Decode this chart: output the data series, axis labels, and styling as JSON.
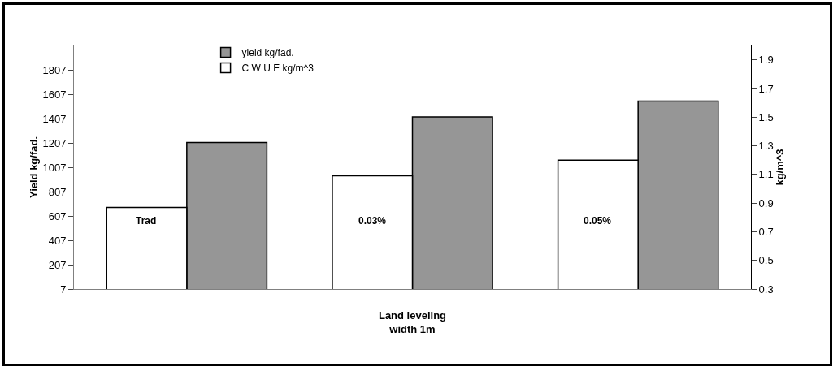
{
  "chart_data": {
    "type": "bar",
    "categories": [
      "Trad",
      "0.03%",
      "0.05%"
    ],
    "xlabel": "Land leveling\nwidth 1m",
    "ylabel": "Yield kg/fad.",
    "y2label": "kg/m^3",
    "series": [
      {
        "name": "C W U E kg/m^3",
        "color": "#ffffff",
        "axis": "y2",
        "values": [
          0.87,
          1.09,
          1.2
        ]
      },
      {
        "name": "yield kg/fad.",
        "color": "#969696",
        "values": [
          1210,
          1420,
          1550
        ]
      }
    ],
    "ylim": [
      7,
      2007
    ],
    "yticks": [
      7,
      207,
      407,
      607,
      807,
      1007,
      1207,
      1407,
      1607,
      1807
    ],
    "y2lim": [
      0.3,
      2.0
    ],
    "y2ticks": [
      0.3,
      0.5,
      0.7,
      0.9,
      1.1,
      1.3,
      1.5,
      1.7,
      1.9
    ],
    "grid": false,
    "legend": "top left"
  }
}
